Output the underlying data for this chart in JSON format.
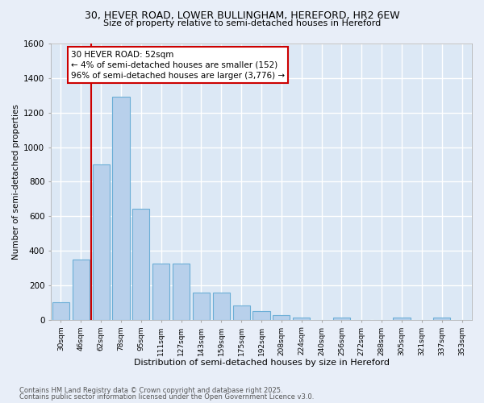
{
  "title_line1": "30, HEVER ROAD, LOWER BULLINGHAM, HEREFORD, HR2 6EW",
  "title_line2": "Size of property relative to semi-detached houses in Hereford",
  "xlabel": "Distribution of semi-detached houses by size in Hereford",
  "ylabel": "Number of semi-detached properties",
  "categories": [
    "30sqm",
    "46sqm",
    "62sqm",
    "78sqm",
    "95sqm",
    "111sqm",
    "127sqm",
    "143sqm",
    "159sqm",
    "175sqm",
    "192sqm",
    "208sqm",
    "224sqm",
    "240sqm",
    "256sqm",
    "272sqm",
    "288sqm",
    "305sqm",
    "321sqm",
    "337sqm",
    "353sqm"
  ],
  "values": [
    100,
    350,
    900,
    1290,
    645,
    325,
    325,
    160,
    160,
    85,
    50,
    25,
    15,
    0,
    15,
    0,
    0,
    15,
    0,
    15,
    0
  ],
  "bar_color": "#b8d0eb",
  "bar_edge_color": "#6baed6",
  "vline_color": "#cc0000",
  "vline_position": 1.5,
  "annotation_title": "30 HEVER ROAD: 52sqm",
  "annotation_line1": "← 4% of semi-detached houses are smaller (152)",
  "annotation_line2": "96% of semi-detached houses are larger (3,776) →",
  "annotation_border_color": "#cc0000",
  "ylim_max": 1600,
  "yticks": [
    0,
    200,
    400,
    600,
    800,
    1000,
    1200,
    1400,
    1600
  ],
  "plot_bg_color": "#dce8f5",
  "fig_bg_color": "#e8eef8",
  "grid_color": "#ffffff",
  "footer_line1": "Contains HM Land Registry data © Crown copyright and database right 2025.",
  "footer_line2": "Contains public sector information licensed under the Open Government Licence v3.0."
}
